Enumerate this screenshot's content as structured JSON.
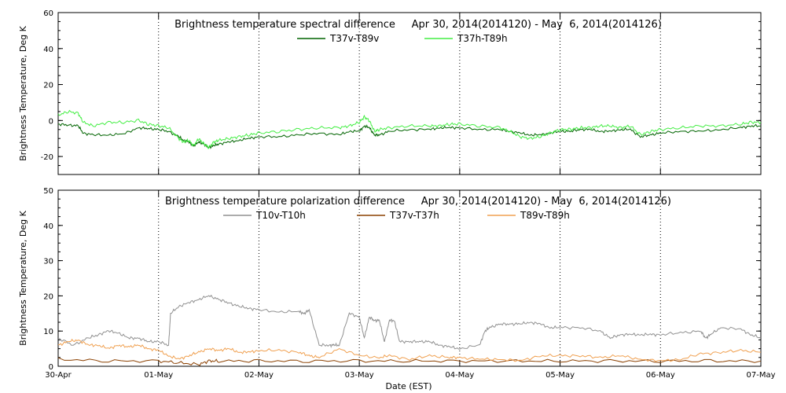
{
  "chart_data": [
    {
      "type": "line",
      "title": "Brightness temperature spectral difference     Apr 30, 2014(2014120) - May  6, 2014(2014126)",
      "xlabel": "",
      "ylabel": "Brightness Temperature, Deg K",
      "xlim": [
        0,
        7
      ],
      "ylim": [
        -30,
        60
      ],
      "yticks": [
        -20,
        0,
        20,
        40,
        60
      ],
      "ytick_labels": [
        "-20",
        "0",
        "20",
        "40",
        "60"
      ],
      "grid": "dotted vertical lines at each day",
      "legend_placement": "top-center",
      "series": [
        {
          "name": "T37v-T89v",
          "color": "#006400",
          "x": [
            0,
            0.1,
            0.2,
            0.25,
            0.35,
            0.5,
            0.65,
            0.8,
            0.9,
            1.0,
            1.1,
            1.2,
            1.25,
            1.3,
            1.35,
            1.4,
            1.45,
            1.5,
            1.55,
            1.6,
            1.7,
            1.8,
            1.9,
            2.0,
            2.2,
            2.4,
            2.6,
            2.8,
            2.9,
            3.0,
            3.05,
            3.1,
            3.15,
            3.2,
            3.3,
            3.5,
            3.7,
            3.8,
            3.9,
            4.0,
            4.2,
            4.4,
            4.5,
            4.6,
            4.7,
            4.8,
            4.9,
            5.0,
            5.1,
            5.2,
            5.3,
            5.4,
            5.5,
            5.6,
            5.7,
            5.8,
            5.9,
            6.0,
            6.2,
            6.4,
            6.6,
            6.8,
            6.9,
            7.0
          ],
          "y": [
            -2,
            -2.5,
            -3,
            -7,
            -8,
            -8,
            -7.5,
            -4,
            -4.5,
            -5,
            -6,
            -9,
            -11,
            -12,
            -14,
            -12,
            -13,
            -15,
            -14,
            -13,
            -12,
            -11,
            -10,
            -9,
            -9,
            -8,
            -7,
            -8,
            -6,
            -6,
            -3,
            -4,
            -8,
            -8,
            -6,
            -5,
            -5,
            -4,
            -4,
            -4,
            -5,
            -5,
            -6,
            -7,
            -8,
            -8,
            -7,
            -6,
            -6,
            -5,
            -5,
            -6,
            -6,
            -5,
            -5,
            -9,
            -8,
            -7,
            -6,
            -6,
            -5,
            -4,
            -3,
            -3
          ]
        },
        {
          "name": "T37h-T89h",
          "color": "#44ee44",
          "x": [
            0,
            0.1,
            0.2,
            0.25,
            0.35,
            0.5,
            0.65,
            0.8,
            0.9,
            1.0,
            1.1,
            1.2,
            1.25,
            1.3,
            1.35,
            1.4,
            1.45,
            1.5,
            1.55,
            1.6,
            1.7,
            1.8,
            1.9,
            2.0,
            2.2,
            2.4,
            2.6,
            2.8,
            2.9,
            3.0,
            3.05,
            3.1,
            3.15,
            3.2,
            3.3,
            3.5,
            3.7,
            3.8,
            3.9,
            4.0,
            4.2,
            4.4,
            4.5,
            4.6,
            4.7,
            4.8,
            4.9,
            5.0,
            5.1,
            5.2,
            5.3,
            5.4,
            5.5,
            5.6,
            5.7,
            5.8,
            5.9,
            6.0,
            6.2,
            6.4,
            6.6,
            6.8,
            6.9,
            7.0
          ],
          "y": [
            3,
            5,
            4,
            -1,
            -3,
            -1,
            -1,
            0,
            -2,
            -3,
            -4,
            -10,
            -12,
            -11,
            -14,
            -10,
            -13,
            -15,
            -12,
            -11,
            -10,
            -9,
            -8,
            -7,
            -6,
            -5,
            -4,
            -4,
            -3,
            -1,
            2,
            0,
            -6,
            -5,
            -4,
            -3,
            -3,
            -3,
            -2,
            -2,
            -3,
            -4,
            -6,
            -9,
            -10,
            -9,
            -7,
            -5,
            -5,
            -4,
            -4,
            -3,
            -3,
            -4,
            -3,
            -8,
            -6,
            -5,
            -4,
            -3,
            -3,
            -2,
            -1,
            -1
          ]
        }
      ]
    },
    {
      "type": "line",
      "title": "Brightness temperature polarization difference     Apr 30, 2014(2014120) - May  6, 2014(2014126)",
      "xlabel": "Date (EST)",
      "ylabel": "Brightness Temperature, Deg K",
      "xlim": [
        0,
        7
      ],
      "ylim": [
        0,
        50
      ],
      "yticks": [
        0,
        10,
        20,
        30,
        40,
        50
      ],
      "ytick_labels": [
        "0",
        "10",
        "20",
        "30",
        "40",
        "50"
      ],
      "xtick_labels": [
        "30-Apr",
        "01-May",
        "02-May",
        "03-May",
        "04-May",
        "05-May",
        "06-May",
        "07-May"
      ],
      "grid": "dotted vertical lines at each day",
      "legend_placement": "top-center",
      "series": [
        {
          "name": "T10v-T10h",
          "color": "#909090",
          "x": [
            0,
            0.15,
            0.3,
            0.4,
            0.5,
            0.6,
            0.7,
            0.8,
            0.9,
            1.0,
            1.1,
            1.12,
            1.2,
            1.3,
            1.4,
            1.5,
            1.6,
            1.7,
            1.8,
            1.9,
            2.0,
            2.2,
            2.4,
            2.45,
            2.5,
            2.6,
            2.7,
            2.75,
            2.8,
            2.9,
            3.0,
            3.05,
            3.1,
            3.15,
            3.2,
            3.25,
            3.3,
            3.35,
            3.4,
            3.5,
            3.6,
            3.7,
            3.8,
            3.9,
            4.0,
            4.2,
            4.25,
            4.3,
            4.4,
            4.5,
            4.6,
            4.7,
            4.8,
            4.9,
            5.0,
            5.2,
            5.4,
            5.5,
            5.6,
            5.7,
            5.8,
            5.9,
            6.0,
            6.2,
            6.4,
            6.45,
            6.5,
            6.6,
            6.8,
            6.9,
            7.0
          ],
          "y": [
            8,
            6,
            8,
            9,
            10,
            9.5,
            8,
            8,
            7,
            7,
            6,
            15,
            17,
            18,
            19,
            20,
            19,
            18,
            17,
            16.5,
            16,
            15.5,
            15.5,
            15,
            16,
            6,
            6,
            6,
            6,
            15,
            14,
            8,
            14,
            13,
            13,
            7,
            13,
            13,
            7,
            7,
            7,
            7,
            6,
            5.5,
            5,
            6,
            10,
            11,
            12,
            12,
            12,
            12.5,
            12,
            11,
            11,
            11,
            10,
            8,
            9,
            9,
            9,
            9,
            9,
            9.5,
            10,
            8,
            9,
            11,
            10.5,
            9,
            8
          ]
        },
        {
          "name": "T37v-T37h",
          "color": "#8b4000",
          "x": [
            0,
            0.5,
            1.0,
            1.2,
            1.4,
            1.5,
            1.6,
            2.0,
            2.5,
            3.0,
            3.5,
            4.0,
            4.5,
            5.0,
            5.5,
            6.0,
            6.5,
            7.0
          ],
          "y": [
            2,
            1.5,
            1.5,
            1,
            0.5,
            1.5,
            1.5,
            1.5,
            1.5,
            1.5,
            1.5,
            1.5,
            1.5,
            1.5,
            1.5,
            1.5,
            1.5,
            1.5
          ]
        },
        {
          "name": "T89v-T89h",
          "color": "#f0a050",
          "x": [
            0,
            0.1,
            0.2,
            0.3,
            0.4,
            0.5,
            0.6,
            0.7,
            0.8,
            0.9,
            1.0,
            1.1,
            1.2,
            1.3,
            1.4,
            1.5,
            1.6,
            1.7,
            1.8,
            1.9,
            2.0,
            2.2,
            2.4,
            2.5,
            2.6,
            2.8,
            3.0,
            3.2,
            3.3,
            3.5,
            3.7,
            3.9,
            4.0,
            4.2,
            4.4,
            4.6,
            4.8,
            5.0,
            5.2,
            5.4,
            5.6,
            5.8,
            6.0,
            6.2,
            6.4,
            6.6,
            6.8,
            7.0
          ],
          "y": [
            6,
            7,
            7.5,
            6,
            6,
            5,
            6,
            5.5,
            6,
            5,
            4.5,
            3,
            2,
            3,
            4,
            5,
            4.5,
            5,
            4,
            4,
            4.5,
            4.5,
            4,
            3,
            2.5,
            5,
            3,
            2.5,
            3,
            2,
            3,
            2.5,
            2.5,
            2,
            2,
            1.5,
            3,
            3,
            3,
            2.5,
            3,
            2,
            1.5,
            2,
            3.5,
            4,
            4.5,
            4
          ]
        }
      ]
    }
  ]
}
